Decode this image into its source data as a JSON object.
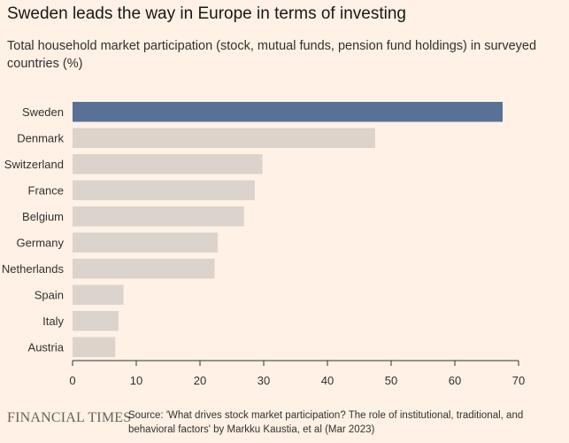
{
  "header": {
    "title": "Sweden leads the way in Europe in terms of investing",
    "subtitle": "Total household market participation (stock, mutual funds, pension fund holdings) in surveyed countries (%)"
  },
  "footer": {
    "brand": "FINANCIAL TIMES",
    "source": "Source: 'What drives stock market participation? The role of institutional, traditional, and behavioral factors' by Markku Kaustia, et al (Mar 2023)"
  },
  "colors": {
    "background": "#fff1e5",
    "highlight": "#587196",
    "bar": "#dcd3cc",
    "axis": "#33302e"
  },
  "chart_data": {
    "type": "bar",
    "orientation": "horizontal",
    "title": "Sweden leads the way in Europe in terms of investing",
    "subtitle": "Total household market participation (stock, mutual funds, pension fund holdings) in surveyed countries (%)",
    "xlabel": "",
    "ylabel": "",
    "categories": [
      "Sweden",
      "Denmark",
      "Switzerland",
      "France",
      "Belgium",
      "Germany",
      "Netherlands",
      "Spain",
      "Italy",
      "Austria"
    ],
    "values": [
      67.5,
      47.5,
      29.8,
      28.6,
      26.9,
      22.8,
      22.3,
      8.0,
      7.2,
      6.7
    ],
    "highlighted": [
      "Sweden"
    ],
    "xlim": [
      0,
      70
    ],
    "xticks": [
      0,
      10,
      20,
      30,
      40,
      50,
      60,
      70
    ],
    "grid": false
  }
}
